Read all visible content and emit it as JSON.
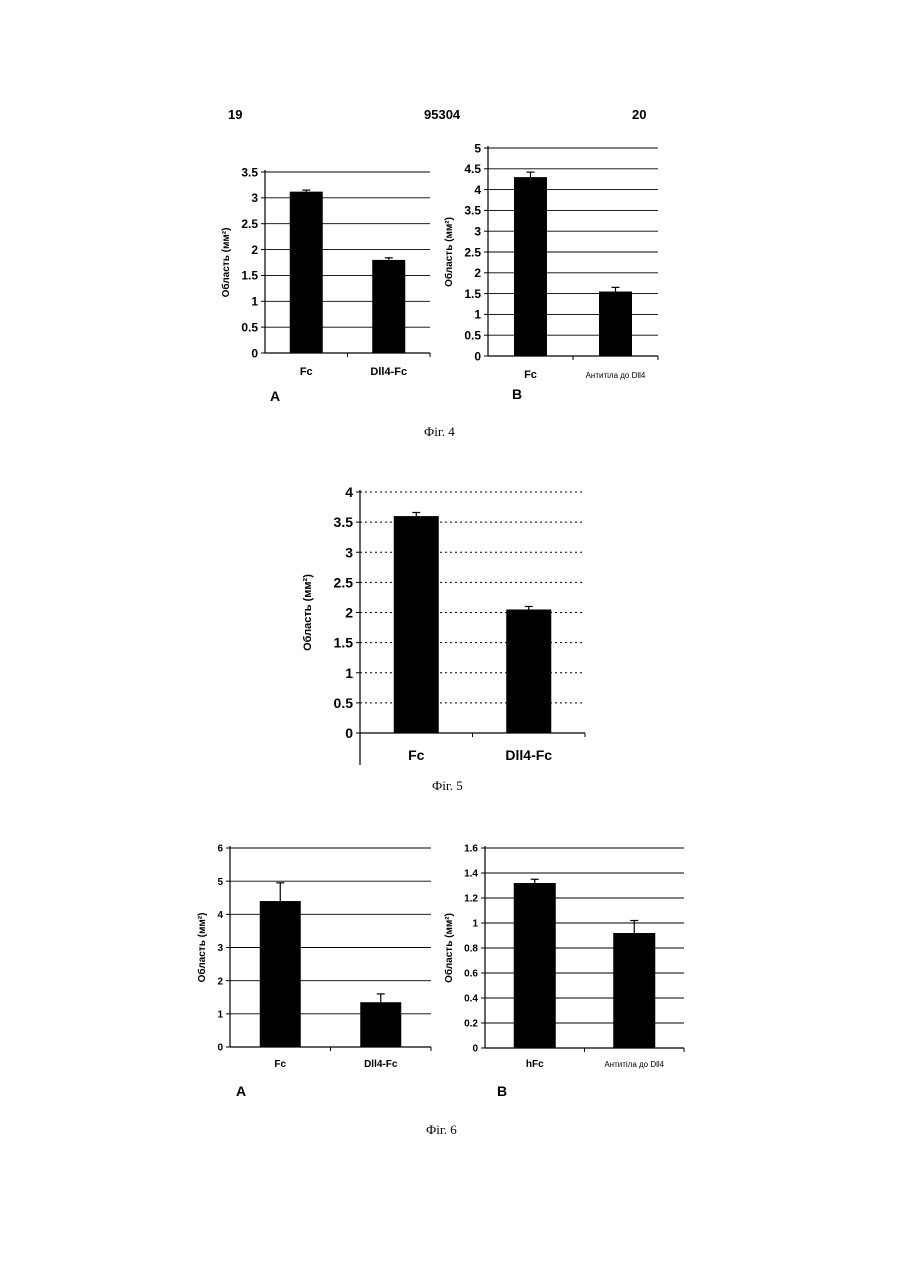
{
  "page": {
    "page_left": "19",
    "patent_number": "95304",
    "page_right": "20"
  },
  "figures": [
    {
      "caption": "Фіг. 4",
      "panels": [
        "A",
        "B"
      ]
    },
    {
      "caption": "Фіг. 5",
      "panels": []
    },
    {
      "caption": "Фіг. 6",
      "panels": [
        "A",
        "B"
      ]
    }
  ],
  "chart_data": [
    {
      "id": "fig4a",
      "type": "bar",
      "categories": [
        "Fc",
        "Dll4-Fc"
      ],
      "values": [
        3.12,
        1.8
      ],
      "errors": [
        0.03,
        0.04
      ],
      "ylabel": "Область (мм²)",
      "ylim": [
        0,
        3.5
      ],
      "yticks": [
        "0",
        "0.5",
        "1",
        "1.5",
        "2",
        "2.5",
        "3",
        "3.5"
      ],
      "grid": "solid"
    },
    {
      "id": "fig4b",
      "type": "bar",
      "categories": [
        "Fc",
        "Антитіла до Dll4"
      ],
      "values": [
        4.3,
        1.55
      ],
      "errors": [
        0.12,
        0.1
      ],
      "ylabel": "Область (мм²)",
      "ylim": [
        0,
        5
      ],
      "yticks": [
        "0",
        "0.5",
        "1",
        "1.5",
        "2",
        "2.5",
        "3",
        "3.5",
        "4",
        "4.5",
        "5"
      ],
      "grid": "solid"
    },
    {
      "id": "fig5",
      "type": "bar",
      "categories": [
        "Fc",
        "Dll4-Fc"
      ],
      "values": [
        3.6,
        2.05
      ],
      "errors": [
        0.06,
        0.05
      ],
      "ylabel": "Область (мм²)",
      "ylim": [
        0,
        4
      ],
      "yticks": [
        "0",
        "0.5",
        "1",
        "1.5",
        "2",
        "2.5",
        "3",
        "3.5",
        "4"
      ],
      "grid": "dotted"
    },
    {
      "id": "fig6a",
      "type": "bar",
      "categories": [
        "Fc",
        "Dll4-Fc"
      ],
      "values": [
        4.4,
        1.35
      ],
      "errors": [
        0.55,
        0.25
      ],
      "ylabel": "Область (мм²)",
      "ylim": [
        0,
        6
      ],
      "yticks": [
        "0",
        "1",
        "2",
        "3",
        "4",
        "5",
        "6"
      ],
      "grid": "solid"
    },
    {
      "id": "fig6b",
      "type": "bar",
      "categories": [
        "hFc",
        "Антитіла до Dll4"
      ],
      "values": [
        1.32,
        0.92
      ],
      "errors": [
        0.03,
        0.1
      ],
      "ylabel": "Область (мм²)",
      "ylim": [
        0,
        1.6
      ],
      "yticks": [
        "0",
        "0.2",
        "0.4",
        "0.6",
        "0.8",
        "1",
        "1.2",
        "1.4",
        "1.6"
      ],
      "grid": "solid"
    }
  ]
}
